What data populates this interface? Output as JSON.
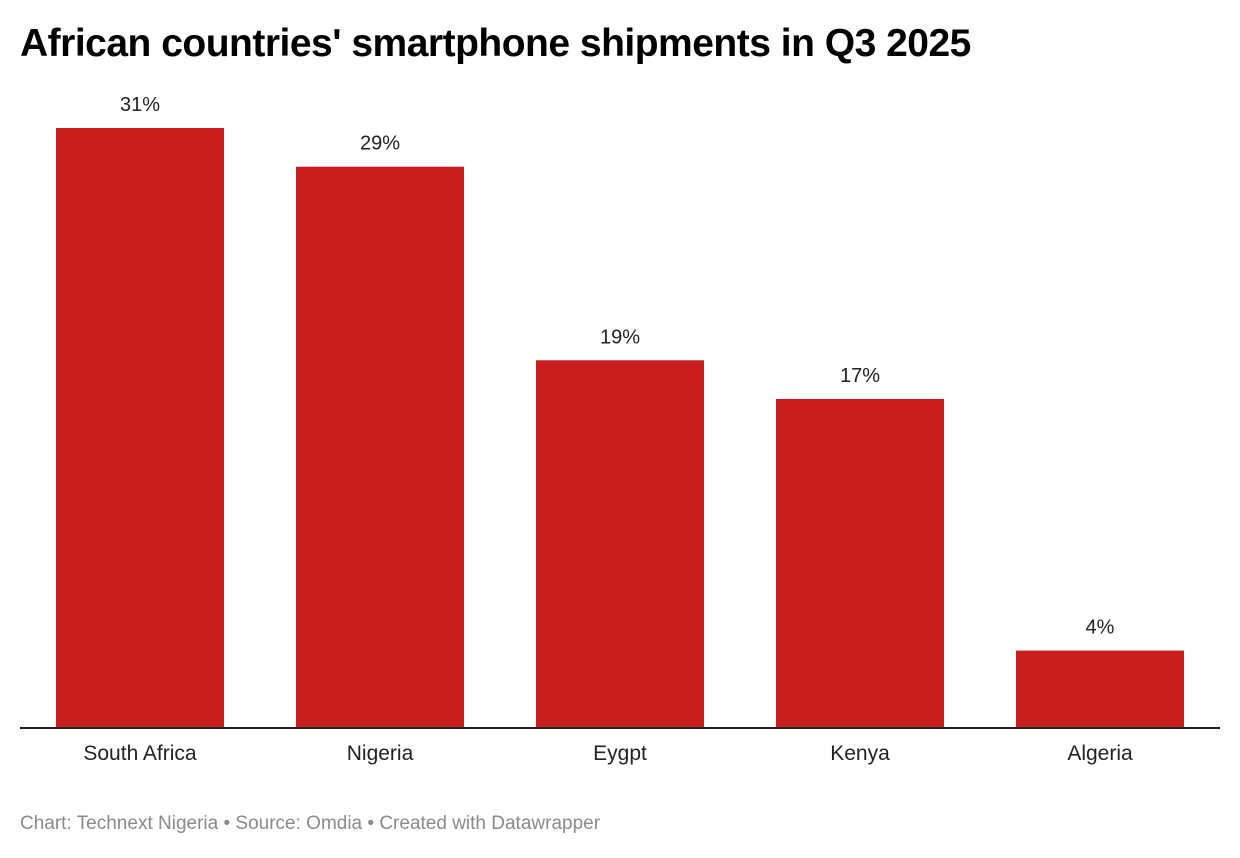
{
  "chart_data": {
    "type": "bar",
    "title": "African countries' smartphone shipments in Q3 2025",
    "categories": [
      "South Africa",
      "Nigeria",
      "Eygpt",
      "Kenya",
      "Algeria"
    ],
    "values": [
      31,
      29,
      19,
      17,
      4
    ],
    "value_labels": [
      "31%",
      "29%",
      "19%",
      "17%",
      "4%"
    ],
    "unit": "%",
    "ylim": [
      0,
      31
    ],
    "grid": false,
    "bar_color": "#c81e1e",
    "xlabel": "",
    "ylabel": ""
  },
  "footer": {
    "text": "Chart: Technext Nigeria • Source: Omdia • Created with Datawrapper"
  }
}
